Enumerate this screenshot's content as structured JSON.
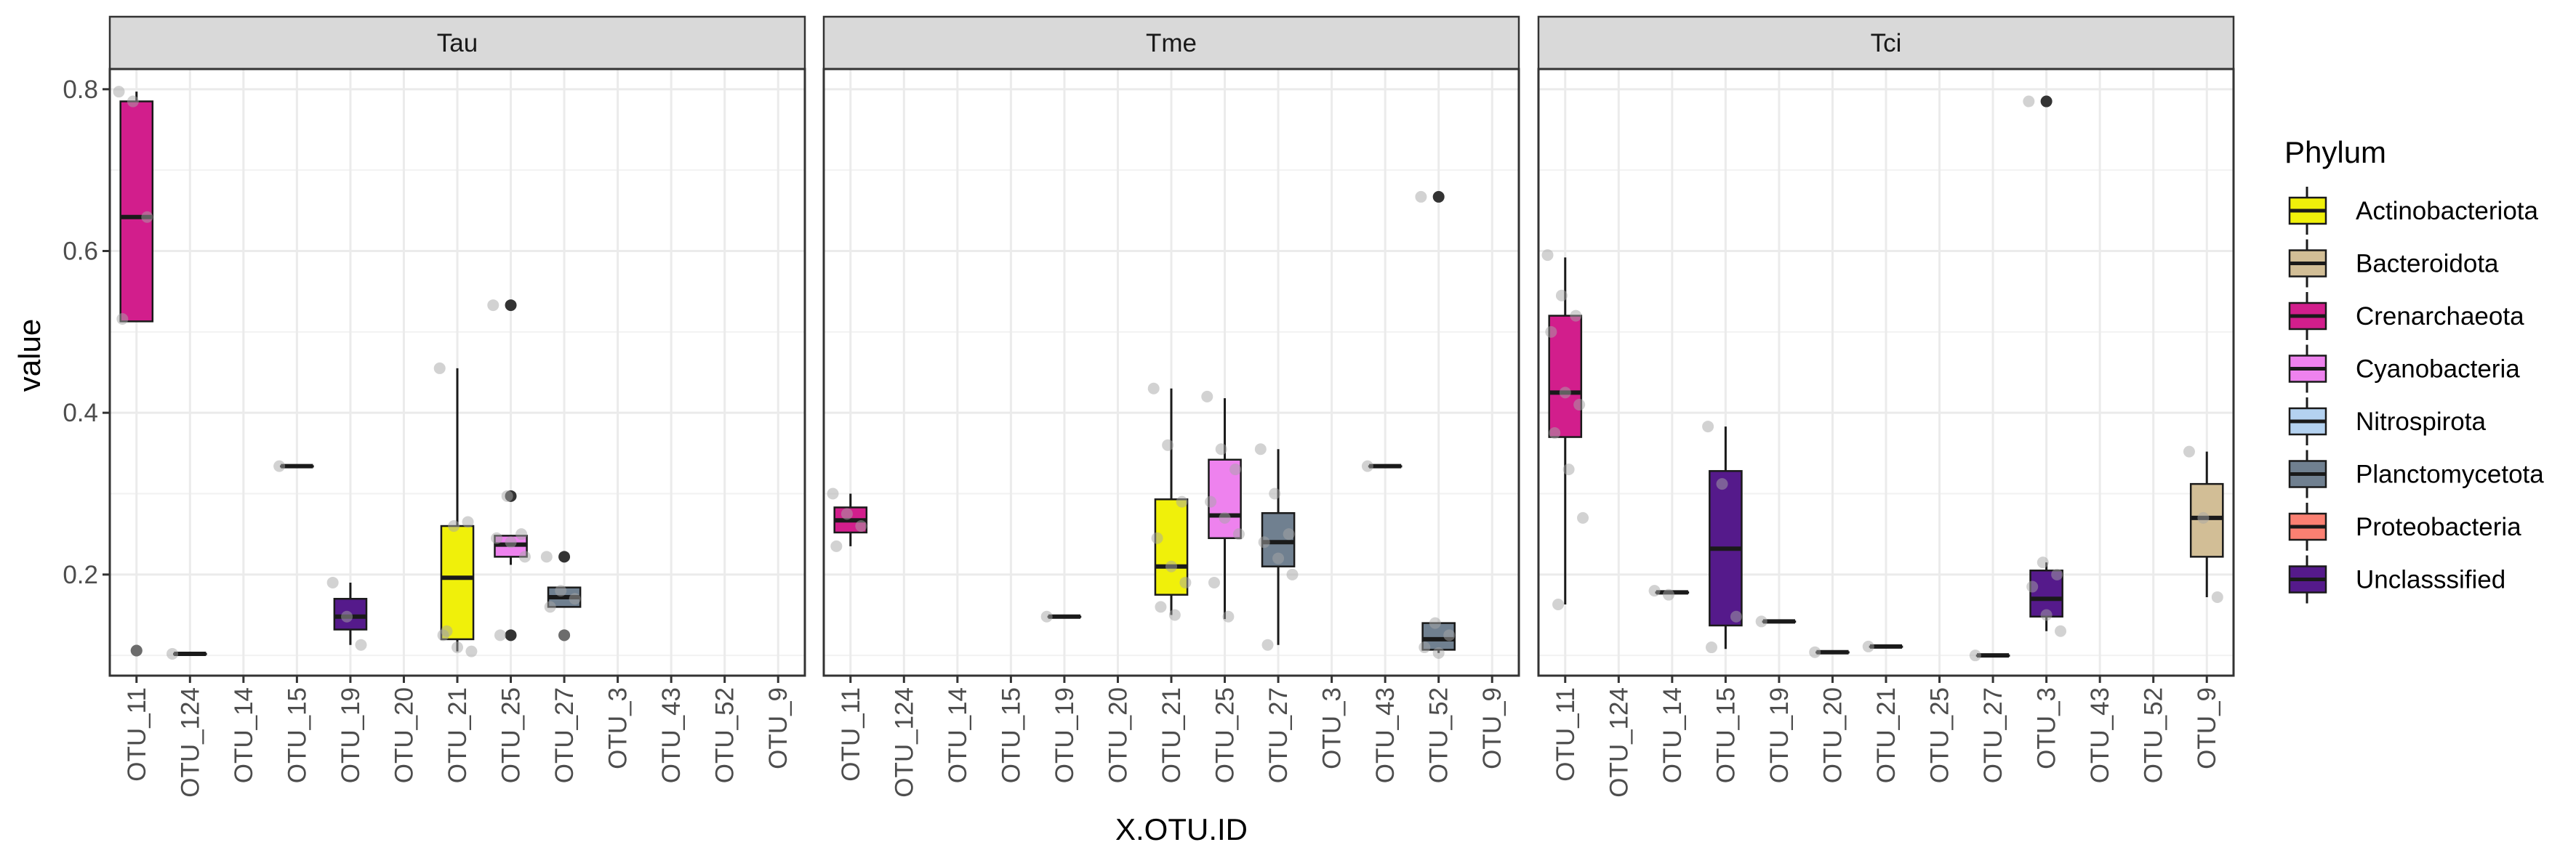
{
  "chart_data": {
    "type": "boxplot",
    "facets": [
      "Tau",
      "Tme",
      "Tci"
    ],
    "categories": [
      "OTU_11",
      "OTU_124",
      "OTU_14",
      "OTU_15",
      "OTU_19",
      "OTU_20",
      "OTU_21",
      "OTU_25",
      "OTU_27",
      "OTU_3",
      "OTU_43",
      "OTU_52",
      "OTU_9"
    ],
    "xlabel": "X.OTU.ID",
    "ylabel": "value",
    "ylim": [
      0.075,
      0.825
    ],
    "yticks": [
      0.2,
      0.4,
      0.6,
      0.8
    ],
    "ytick_labels": [
      "0.2",
      "0.4",
      "0.6",
      "0.8"
    ],
    "grid": true,
    "legend": {
      "title": "Phylum",
      "position": "right",
      "entries": [
        {
          "name": "Actinobacteriota",
          "color": "#F0F00A"
        },
        {
          "name": "Bacteroidota",
          "color": "#D2BE96"
        },
        {
          "name": "Crenarchaeota",
          "color": "#D21E8C"
        },
        {
          "name": "Cyanobacteria",
          "color": "#EE82EE"
        },
        {
          "name": "Nitrospirota",
          "color": "#B4D2F0"
        },
        {
          "name": "Planctomycetota",
          "color": "#708090"
        },
        {
          "name": "Proteobacteria",
          "color": "#FA8072"
        },
        {
          "name": "Unclasssified",
          "color": "#551A8B"
        }
      ]
    },
    "panels": [
      {
        "facet": "Tau",
        "boxes": [
          {
            "category": "OTU_11",
            "phylum": "Crenarchaeota",
            "q1": 0.513,
            "median": 0.642,
            "q3": 0.785,
            "whisker_low": 0.513,
            "whisker_high": 0.797,
            "outliers": [
              0.106
            ],
            "points": [
              0.797,
              0.785,
              0.642,
              0.516,
              0.106
            ]
          },
          {
            "category": "OTU_124",
            "phylum": "Crenarchaeota",
            "q1": 0.102,
            "median": 0.102,
            "q3": 0.102,
            "whisker_low": 0.102,
            "whisker_high": 0.102,
            "outliers": [],
            "points": [
              0.102
            ]
          },
          {
            "category": "OTU_15",
            "phylum": "Unclasssified",
            "q1": 0.334,
            "median": 0.334,
            "q3": 0.334,
            "whisker_low": 0.334,
            "whisker_high": 0.334,
            "outliers": [],
            "points": [
              0.334
            ]
          },
          {
            "category": "OTU_19",
            "phylum": "Unclasssified",
            "q1": 0.132,
            "median": 0.148,
            "q3": 0.17,
            "whisker_low": 0.113,
            "whisker_high": 0.19,
            "outliers": [],
            "points": [
              0.19,
              0.148,
              0.113
            ]
          },
          {
            "category": "OTU_21",
            "phylum": "Actinobacteriota",
            "q1": 0.12,
            "median": 0.196,
            "q3": 0.26,
            "whisker_low": 0.105,
            "whisker_high": 0.455,
            "outliers": [],
            "points": [
              0.455,
              0.26,
              0.265,
              0.125,
              0.11,
              0.105,
              0.13
            ]
          },
          {
            "category": "OTU_25",
            "phylum": "Cyanobacteria",
            "q1": 0.222,
            "median": 0.237,
            "q3": 0.248,
            "whisker_low": 0.212,
            "whisker_high": 0.248,
            "outliers": [
              0.533,
              0.297,
              0.125
            ],
            "points": [
              0.533,
              0.297,
              0.25,
              0.245,
              0.24,
              0.222,
              0.125
            ]
          },
          {
            "category": "OTU_27",
            "phylum": "Planctomycetota",
            "q1": 0.16,
            "median": 0.172,
            "q3": 0.184,
            "whisker_low": 0.16,
            "whisker_high": 0.184,
            "outliers": [
              0.222,
              0.125
            ],
            "points": [
              0.222,
              0.18,
              0.17,
              0.16,
              0.125
            ]
          }
        ]
      },
      {
        "facet": "Tme",
        "boxes": [
          {
            "category": "OTU_11",
            "phylum": "Crenarchaeota",
            "q1": 0.252,
            "median": 0.267,
            "q3": 0.283,
            "whisker_low": 0.235,
            "whisker_high": 0.3,
            "outliers": [],
            "points": [
              0.3,
              0.275,
              0.26,
              0.235
            ]
          },
          {
            "category": "OTU_19",
            "phylum": "Unclasssified",
            "q1": 0.148,
            "median": 0.148,
            "q3": 0.148,
            "whisker_low": 0.148,
            "whisker_high": 0.148,
            "outliers": [],
            "points": [
              0.148
            ]
          },
          {
            "category": "OTU_21",
            "phylum": "Actinobacteriota",
            "q1": 0.175,
            "median": 0.21,
            "q3": 0.293,
            "whisker_low": 0.15,
            "whisker_high": 0.43,
            "outliers": [],
            "points": [
              0.43,
              0.36,
              0.29,
              0.245,
              0.21,
              0.19,
              0.16,
              0.15
            ]
          },
          {
            "category": "OTU_25",
            "phylum": "Cyanobacteria",
            "q1": 0.245,
            "median": 0.273,
            "q3": 0.342,
            "whisker_low": 0.145,
            "whisker_high": 0.418,
            "outliers": [],
            "points": [
              0.42,
              0.355,
              0.33,
              0.29,
              0.27,
              0.25,
              0.19,
              0.148
            ]
          },
          {
            "category": "OTU_27",
            "phylum": "Planctomycetota",
            "q1": 0.21,
            "median": 0.24,
            "q3": 0.276,
            "whisker_low": 0.113,
            "whisker_high": 0.355,
            "outliers": [],
            "points": [
              0.355,
              0.3,
              0.25,
              0.24,
              0.22,
              0.2,
              0.113
            ]
          },
          {
            "category": "OTU_43",
            "phylum": "Planctomycetota",
            "q1": 0.334,
            "median": 0.334,
            "q3": 0.334,
            "whisker_low": 0.334,
            "whisker_high": 0.334,
            "outliers": [],
            "points": [
              0.334
            ]
          },
          {
            "category": "OTU_52",
            "phylum": "Planctomycetota",
            "q1": 0.107,
            "median": 0.12,
            "q3": 0.14,
            "whisker_low": 0.103,
            "whisker_high": 0.14,
            "outliers": [
              0.667
            ],
            "points": [
              0.667,
              0.14,
              0.125,
              0.11,
              0.103
            ]
          }
        ]
      },
      {
        "facet": "Tci",
        "boxes": [
          {
            "category": "OTU_11",
            "phylum": "Crenarchaeota",
            "q1": 0.37,
            "median": 0.425,
            "q3": 0.52,
            "whisker_low": 0.163,
            "whisker_high": 0.592,
            "outliers": [],
            "points": [
              0.595,
              0.545,
              0.52,
              0.5,
              0.425,
              0.41,
              0.375,
              0.33,
              0.27,
              0.163
            ]
          },
          {
            "category": "OTU_14",
            "phylum": "Unclasssified",
            "q1": 0.178,
            "median": 0.178,
            "q3": 0.178,
            "whisker_low": 0.178,
            "whisker_high": 0.178,
            "outliers": [],
            "points": [
              0.18,
              0.175
            ]
          },
          {
            "category": "OTU_15",
            "phylum": "Unclasssified",
            "q1": 0.137,
            "median": 0.232,
            "q3": 0.328,
            "whisker_low": 0.108,
            "whisker_high": 0.383,
            "outliers": [],
            "points": [
              0.383,
              0.312,
              0.148,
              0.11
            ]
          },
          {
            "category": "OTU_19",
            "phylum": "Unclasssified",
            "q1": 0.142,
            "median": 0.142,
            "q3": 0.142,
            "whisker_low": 0.142,
            "whisker_high": 0.142,
            "outliers": [],
            "points": [
              0.142
            ]
          },
          {
            "category": "OTU_20",
            "phylum": "Unclasssified",
            "q1": 0.104,
            "median": 0.104,
            "q3": 0.104,
            "whisker_low": 0.104,
            "whisker_high": 0.104,
            "outliers": [],
            "points": [
              0.104
            ]
          },
          {
            "category": "OTU_21",
            "phylum": "Unclasssified",
            "q1": 0.111,
            "median": 0.111,
            "q3": 0.111,
            "whisker_low": 0.111,
            "whisker_high": 0.111,
            "outliers": [],
            "points": [
              0.111
            ]
          },
          {
            "category": "OTU_27",
            "phylum": "Unclasssified",
            "q1": 0.1,
            "median": 0.1,
            "q3": 0.1,
            "whisker_low": 0.1,
            "whisker_high": 0.1,
            "outliers": [],
            "points": [
              0.1
            ]
          },
          {
            "category": "OTU_3",
            "phylum": "Unclasssified",
            "q1": 0.148,
            "median": 0.17,
            "q3": 0.205,
            "whisker_low": 0.13,
            "whisker_high": 0.215,
            "outliers": [
              0.785
            ],
            "points": [
              0.785,
              0.215,
              0.2,
              0.185,
              0.15,
              0.13
            ]
          },
          {
            "category": "OTU_9",
            "phylum": "Bacteroidota",
            "q1": 0.222,
            "median": 0.27,
            "q3": 0.312,
            "whisker_low": 0.172,
            "whisker_high": 0.352,
            "outliers": [],
            "points": [
              0.352,
              0.27,
              0.172
            ]
          }
        ]
      }
    ]
  }
}
